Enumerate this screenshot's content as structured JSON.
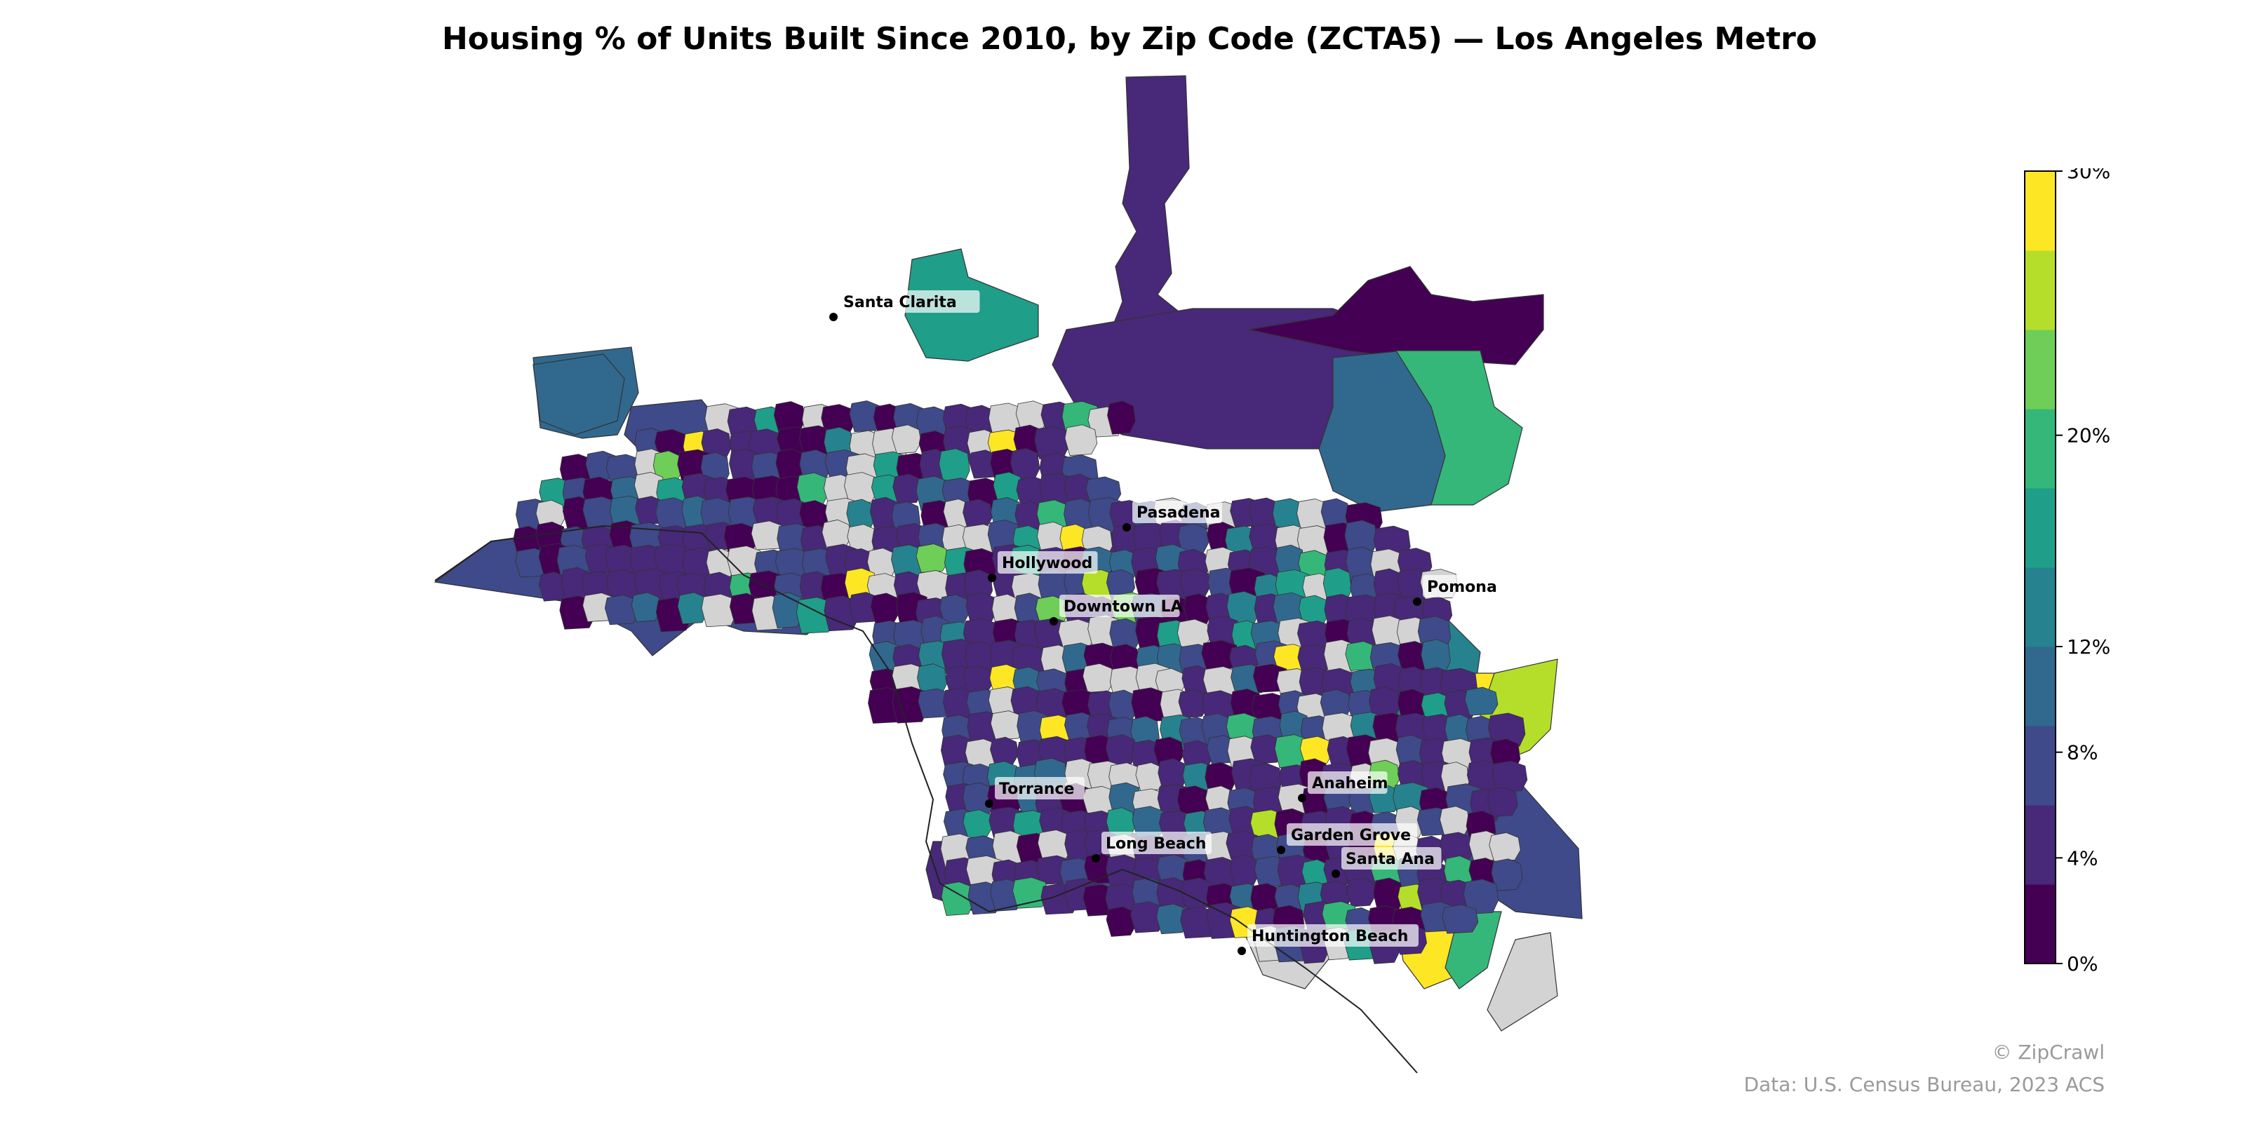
{
  "title": "Housing % of Units Built Since 2010, by Zip Code (ZCTA5) — Los Angeles Metro",
  "map": {
    "region": "Los Angeles Metro",
    "unit": "ZCTA5",
    "no_data_color": "#d3d3d3",
    "boundary_color": "#333333",
    "cities": [
      {
        "name": "Santa Clarita"
      },
      {
        "name": "Pasadena"
      },
      {
        "name": "Hollywood"
      },
      {
        "name": "Downtown LA"
      },
      {
        "name": "Pomona"
      },
      {
        "name": "Anaheim"
      },
      {
        "name": "Torrance"
      },
      {
        "name": "Long Beach"
      },
      {
        "name": "Garden Grove"
      },
      {
        "name": "Santa Ana"
      },
      {
        "name": "Huntington Beach"
      }
    ]
  },
  "colorbar": {
    "min": 0,
    "max": 30,
    "tick_labels": [
      "0%",
      "4%",
      "8%",
      "12%",
      "20%",
      "30%"
    ],
    "tick_values": [
      0,
      4,
      8,
      12,
      20,
      30
    ],
    "bins": 10,
    "colors": [
      "#440154",
      "#482878",
      "#3e4a89",
      "#31688e",
      "#26828e",
      "#1f9e89",
      "#35b779",
      "#6ece58",
      "#b5de2b",
      "#fde725"
    ]
  },
  "attribution": {
    "copyright": "© ZipCrawl",
    "source": "Data: U.S. Census Bureau, 2023 ACS"
  }
}
